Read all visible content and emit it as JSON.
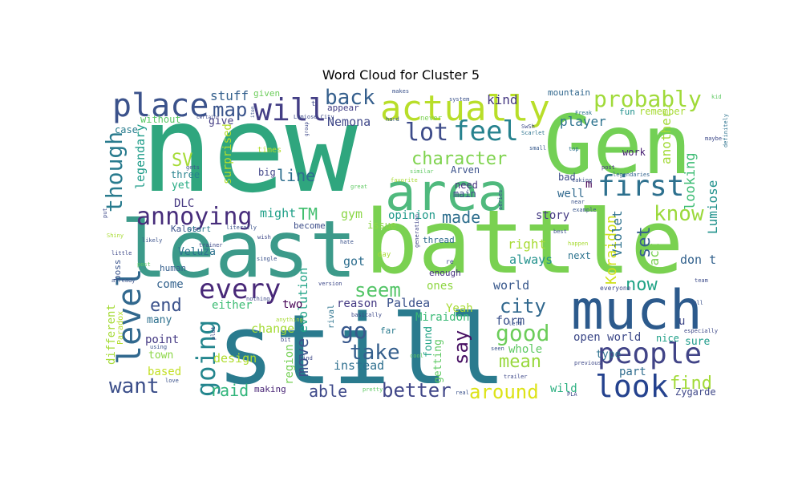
{
  "figure": {
    "title": "Word Cloud for Cluster 5"
  },
  "word_cloud": {
    "words": [
      {
        "text": "new",
        "color": "#2fa67e"
      },
      {
        "text": "still",
        "color": "#2a7b8e"
      },
      {
        "text": "battle",
        "color": "#7ad151"
      },
      {
        "text": "least",
        "color": "#3c9a8a"
      },
      {
        "text": "Gen",
        "color": "#73d055"
      },
      {
        "text": "area",
        "color": "#4fb97d"
      },
      {
        "text": "much",
        "color": "#2c5a8c"
      },
      {
        "text": "actually",
        "color": "#b8de29"
      },
      {
        "text": "place",
        "color": "#3b528b"
      },
      {
        "text": "people",
        "color": "#414487"
      },
      {
        "text": "will",
        "color": "#433e85"
      },
      {
        "text": "level",
        "color": "#31688e"
      },
      {
        "text": "every",
        "color": "#482878"
      },
      {
        "text": "first",
        "color": "#2d708e"
      },
      {
        "text": "going",
        "color": "#24868e"
      },
      {
        "text": "look",
        "color": "#24428e"
      },
      {
        "text": "annoying",
        "color": "#472d7b"
      },
      {
        "text": "feel",
        "color": "#26828e"
      },
      {
        "text": "probably",
        "color": "#a0da39"
      },
      {
        "text": "lot",
        "color": "#3e4c8a"
      },
      {
        "text": "good",
        "color": "#6ccd5a"
      },
      {
        "text": "character",
        "color": "#7fd34e"
      },
      {
        "text": "though",
        "color": "#297b8e"
      },
      {
        "text": "map",
        "color": "#3a548c"
      },
      {
        "text": "back",
        "color": "#355f8d"
      },
      {
        "text": "know",
        "color": "#9bd93c"
      },
      {
        "text": "take",
        "color": "#355f8d"
      },
      {
        "text": "want",
        "color": "#3c4f8a"
      },
      {
        "text": "around",
        "color": "#dde318"
      },
      {
        "text": "better",
        "color": "#404688"
      },
      {
        "text": "city",
        "color": "#31688e"
      },
      {
        "text": "seem",
        "color": "#54c568"
      },
      {
        "text": "say",
        "color": "#471063"
      },
      {
        "text": "go",
        "color": "#38588c"
      },
      {
        "text": "end",
        "color": "#3b528b"
      },
      {
        "text": "now",
        "color": "#20a386"
      },
      {
        "text": "mean",
        "color": "#98d83e"
      },
      {
        "text": "find",
        "color": "#a2da37"
      },
      {
        "text": "SV",
        "color": "#a5db36"
      },
      {
        "text": "TM",
        "color": "#44bf70"
      },
      {
        "text": "set",
        "color": "#355e8d"
      },
      {
        "text": "line",
        "color": "#2e6e8e"
      },
      {
        "text": "made",
        "color": "#2e6f8e"
      },
      {
        "text": "Koraidon",
        "color": "#d0e11c"
      },
      {
        "text": "raid",
        "color": "#31b57b"
      },
      {
        "text": "move",
        "color": "#3b528b"
      },
      {
        "text": "able",
        "color": "#3e4989"
      },
      {
        "text": "Lumiose",
        "color": "#20928c"
      },
      {
        "text": "Violet",
        "color": "#2d708e"
      },
      {
        "text": "stuff",
        "color": "#34608d"
      },
      {
        "text": "kind",
        "color": "#453781"
      },
      {
        "text": "player",
        "color": "#2c728e"
      },
      {
        "text": "Nemona",
        "color": "#3f4788"
      },
      {
        "text": "looking",
        "color": "#3dbc74"
      },
      {
        "text": "might",
        "color": "#1fa088"
      },
      {
        "text": "gym",
        "color": "#8bd646"
      },
      {
        "text": "opinion",
        "color": "#1f998a"
      },
      {
        "text": "story",
        "color": "#443a83"
      },
      {
        "text": "right",
        "color": "#a8db34"
      },
      {
        "text": "always",
        "color": "#21918c"
      },
      {
        "text": "got",
        "color": "#2e6e8e"
      },
      {
        "text": "don t",
        "color": "#33628d"
      },
      {
        "text": "fact",
        "color": "#7ad151"
      },
      {
        "text": "another",
        "color": "#a2da37"
      },
      {
        "text": "legendary",
        "color": "#1e9c89"
      },
      {
        "text": "surprised",
        "color": "#b5de2b"
      },
      {
        "text": "evolution",
        "color": "#20a386"
      },
      {
        "text": "region",
        "color": "#75d054"
      },
      {
        "text": "change",
        "color": "#a5db36"
      },
      {
        "text": "design",
        "color": "#b0dd2f"
      },
      {
        "text": "different",
        "color": "#a5db36"
      },
      {
        "text": "ones",
        "color": "#8fd744"
      },
      {
        "text": "Paldea",
        "color": "#3b528b"
      },
      {
        "text": "reason",
        "color": "#443983"
      },
      {
        "text": "Miraidon",
        "color": "#3aba76"
      },
      {
        "text": "form",
        "color": "#3b528b"
      },
      {
        "text": "Yeah",
        "color": "#a8db34"
      },
      {
        "text": "world",
        "color": "#38588c"
      },
      {
        "text": "open world",
        "color": "#3e4a89"
      },
      {
        "text": "whole",
        "color": "#5ec962"
      },
      {
        "text": "found",
        "color": "#20a386"
      },
      {
        "text": "getting",
        "color": "#5ec962"
      },
      {
        "text": "instead",
        "color": "#2e6f8e"
      },
      {
        "text": "wild",
        "color": "#29af7f"
      },
      {
        "text": "part",
        "color": "#2f6c8e"
      },
      {
        "text": "sure",
        "color": "#1e9b8a"
      },
      {
        "text": "type",
        "color": "#2d718e"
      },
      {
        "text": "Zygarde",
        "color": "#3f4889"
      },
      {
        "text": "point",
        "color": "#443983"
      },
      {
        "text": "based",
        "color": "#c2df23"
      },
      {
        "text": "town",
        "color": "#8bd646"
      },
      {
        "text": "either",
        "color": "#3dbc74"
      },
      {
        "text": "come",
        "color": "#33628d"
      },
      {
        "text": "two",
        "color": "#440154"
      },
      {
        "text": "many",
        "color": "#2d708e"
      },
      {
        "text": "Veluza",
        "color": "#2c728e"
      },
      {
        "text": "DLC",
        "color": "#453781"
      },
      {
        "text": "yet",
        "color": "#25ab82"
      },
      {
        "text": "three",
        "color": "#26828e"
      },
      {
        "text": "give",
        "color": "#433d84"
      },
      {
        "text": "without",
        "color": "#5ac864"
      },
      {
        "text": "case",
        "color": "#287c8e"
      },
      {
        "text": "mountain",
        "color": "#31688e"
      },
      {
        "text": "remember",
        "color": "#a8db34"
      },
      {
        "text": "fun",
        "color": "#21918c"
      },
      {
        "text": "work",
        "color": "#482173"
      },
      {
        "text": "well",
        "color": "#30698e"
      },
      {
        "text": "m",
        "color": "#440154"
      },
      {
        "text": "bad",
        "color": "#3e4c8a"
      },
      {
        "text": "next",
        "color": "#2c738e"
      },
      {
        "text": "nice",
        "color": "#1fa088"
      },
      {
        "text": "u",
        "color": "#3f4889"
      },
      {
        "text": "Arven",
        "color": "#3b528b"
      },
      {
        "text": "need",
        "color": "#46337f"
      },
      {
        "text": "main",
        "color": "#3e4989"
      },
      {
        "text": "issue",
        "color": "#8bd646"
      },
      {
        "text": "become",
        "color": "#3d4e8a"
      },
      {
        "text": "thread",
        "color": "#2f6c8e"
      },
      {
        "text": "enough",
        "color": "#46307e"
      },
      {
        "text": "far",
        "color": "#297a8e"
      },
      {
        "text": "rival",
        "color": "#2c738e"
      },
      {
        "text": "human",
        "color": "#355f8d"
      },
      {
        "text": "boss",
        "color": "#3a548c"
      },
      {
        "text": "making",
        "color": "#482475"
      },
      {
        "text": "Paradox",
        "color": "#b5de2b"
      },
      {
        "text": "Kalos",
        "color": "#3b528b"
      },
      {
        "text": "start",
        "color": "#2a788e"
      },
      {
        "text": "big",
        "color": "#404588"
      },
      {
        "text": "times",
        "color": "#b2dd2d"
      },
      {
        "text": "given",
        "color": "#6ccd5a"
      },
      {
        "text": "appear",
        "color": "#433e85"
      },
      {
        "text": "Lumiose City",
        "color": "#3e4c8a"
      },
      {
        "text": "never",
        "color": "#7ad151"
      },
      {
        "text": "hard",
        "color": "#39568c"
      },
      {
        "text": "makes",
        "color": "#3b528b"
      },
      {
        "text": "SwSh",
        "color": "#3e4989"
      },
      {
        "text": "Scarlet",
        "color": "#2c728e"
      },
      {
        "text": "small",
        "color": "#37598c"
      },
      {
        "text": "top",
        "color": "#2d708e"
      },
      {
        "text": "post",
        "color": "#46327e"
      },
      {
        "text": "Freak",
        "color": "#2c738e"
      },
      {
        "text": "taking",
        "color": "#3b528b"
      },
      {
        "text": "legendaries",
        "color": "#32648e"
      },
      {
        "text": "maybe",
        "color": "#3e4a89"
      },
      {
        "text": "definitely",
        "color": "#2c728e"
      },
      {
        "text": "kid",
        "color": "#5ec962"
      },
      {
        "text": "series",
        "color": "#3e4989"
      },
      {
        "text": "example",
        "color": "#39568c"
      },
      {
        "text": "near",
        "color": "#3b528b"
      },
      {
        "text": "favorite",
        "color": "#a8db34"
      },
      {
        "text": "great",
        "color": "#5ec962"
      },
      {
        "text": "generation",
        "color": "#414487"
      },
      {
        "text": "best",
        "color": "#3b528b"
      },
      {
        "text": "happen",
        "color": "#a8db34"
      },
      {
        "text": "team",
        "color": "#3e4c8a"
      },
      {
        "text": "full",
        "color": "#3b528b"
      },
      {
        "text": "especially",
        "color": "#3e4989"
      },
      {
        "text": "previous",
        "color": "#3e4989"
      },
      {
        "text": "everyone",
        "color": "#3e4989"
      },
      {
        "text": "left",
        "color": "#3b528b"
      },
      {
        "text": "trailer",
        "color": "#3e4989"
      },
      {
        "text": "real",
        "color": "#3b528b"
      },
      {
        "text": "pretty",
        "color": "#5ec962"
      },
      {
        "text": "cool",
        "color": "#5ec962"
      },
      {
        "text": "love",
        "color": "#3b528b"
      },
      {
        "text": "mind",
        "color": "#3e4989"
      },
      {
        "text": "bit",
        "color": "#3e4989"
      },
      {
        "text": "version",
        "color": "#3e4989"
      },
      {
        "text": "single",
        "color": "#3b528b"
      },
      {
        "text": "nothing",
        "color": "#3e4989"
      },
      {
        "text": "anything",
        "color": "#a8db34"
      },
      {
        "text": "already",
        "color": "#3b528b"
      },
      {
        "text": "post",
        "color": "#5ec962"
      },
      {
        "text": "little",
        "color": "#3e4989"
      },
      {
        "text": "Shiny",
        "color": "#a8db34"
      },
      {
        "text": "put",
        "color": "#3e4989"
      },
      {
        "text": "likely",
        "color": "#3b528b"
      },
      {
        "text": "wish",
        "color": "#3e4989"
      },
      {
        "text": "literally",
        "color": "#3b528b"
      },
      {
        "text": "trainer",
        "color": "#3e4989"
      },
      {
        "text": "system",
        "color": "#3b528b"
      },
      {
        "text": "basically",
        "color": "#3e4989"
      },
      {
        "text": "similar",
        "color": "#5ec962"
      },
      {
        "text": "using",
        "color": "#3b528b"
      },
      {
        "text": "plot",
        "color": "#3e4989"
      },
      {
        "text": "seen",
        "color": "#3b528b"
      },
      {
        "text": "day",
        "color": "#a8db34"
      },
      {
        "text": "re",
        "color": "#3e4989"
      },
      {
        "text": "gets",
        "color": "#3b528b"
      },
      {
        "text": "certain",
        "color": "#3e4989"
      },
      {
        "text": "item",
        "color": "#3b528b"
      },
      {
        "text": "group",
        "color": "#3e4989"
      },
      {
        "text": "t",
        "color": "#3e4989"
      },
      {
        "text": "hate",
        "color": "#3b528b"
      },
      {
        "text": "PLA",
        "color": "#3e4989"
      }
    ]
  }
}
